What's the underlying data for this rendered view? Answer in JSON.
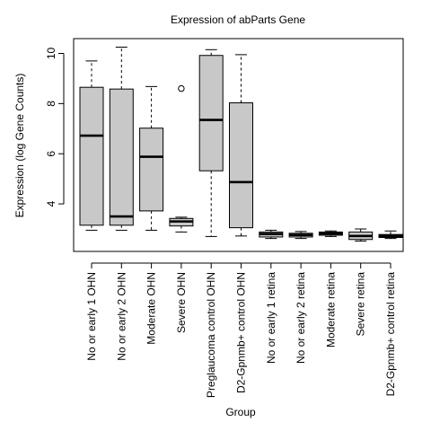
{
  "chart_data": {
    "type": "boxplot",
    "title": "Expression of  abParts Gene",
    "xlabel": "Group",
    "ylabel": "Expression (log Gene Counts)",
    "ylim": [
      2.2,
      10.5
    ],
    "yticks": [
      4,
      6,
      8,
      10
    ],
    "grid": false,
    "legend": "none",
    "colors": {
      "box_fill": "#c8c8c8",
      "stroke": "#000000"
    },
    "categories": [
      "No or early 1 OHN",
      "No or early 2 OHN",
      "Moderate OHN",
      "Severe OHN",
      "Preglaucoma control OHN",
      "D2-Gpnmb+ control OHN",
      "No or early 1 retina",
      "No or early 2 retina",
      "Moderate retina",
      "Severe retina",
      "D2-Gpnmb+ control retina"
    ],
    "boxes": [
      {
        "min": 2.95,
        "q1": 3.15,
        "median": 6.72,
        "q3": 8.65,
        "max": 9.7,
        "outliers": []
      },
      {
        "min": 2.95,
        "q1": 3.15,
        "median": 3.5,
        "q3": 8.58,
        "max": 10.25,
        "outliers": []
      },
      {
        "min": 2.95,
        "q1": 3.72,
        "median": 5.88,
        "q3": 7.02,
        "max": 8.68,
        "outliers": []
      },
      {
        "min": 2.88,
        "q1": 3.12,
        "median": 3.3,
        "q3": 3.42,
        "max": 3.47,
        "outliers": [
          8.6
        ]
      },
      {
        "min": 2.7,
        "q1": 5.32,
        "median": 7.35,
        "q3": 9.92,
        "max": 10.15,
        "outliers": []
      },
      {
        "min": 2.72,
        "q1": 3.05,
        "median": 4.87,
        "q3": 8.03,
        "max": 9.95,
        "outliers": []
      },
      {
        "min": 2.62,
        "q1": 2.68,
        "median": 2.8,
        "q3": 2.88,
        "max": 2.95,
        "outliers": []
      },
      {
        "min": 2.62,
        "q1": 2.68,
        "median": 2.76,
        "q3": 2.83,
        "max": 2.9,
        "outliers": []
      },
      {
        "min": 2.7,
        "q1": 2.75,
        "median": 2.82,
        "q3": 2.88,
        "max": 2.92,
        "outliers": []
      },
      {
        "min": 2.52,
        "q1": 2.58,
        "median": 2.72,
        "q3": 2.88,
        "max": 3.0,
        "outliers": []
      },
      {
        "min": 2.62,
        "q1": 2.66,
        "median": 2.72,
        "q3": 2.78,
        "max": 2.92,
        "outliers": []
      }
    ]
  }
}
